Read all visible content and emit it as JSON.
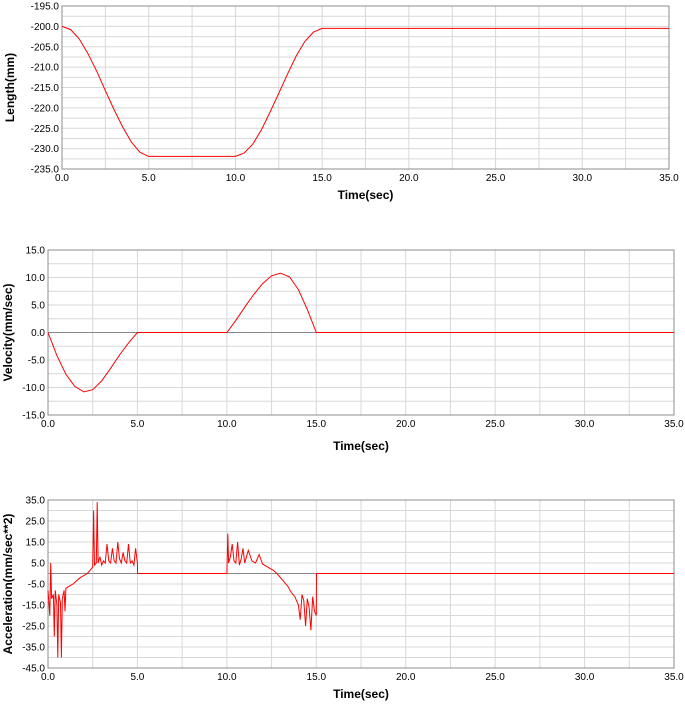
{
  "chart_data": [
    {
      "type": "line",
      "title": "",
      "xlabel": "Time(sec)",
      "ylabel": "Length(mm)",
      "xlim": [
        0,
        35
      ],
      "ylim": [
        -235,
        -195
      ],
      "x_ticks": [
        "0.0",
        "5.0",
        "10.0",
        "15.0",
        "20.0",
        "25.0",
        "30.0",
        "35.0"
      ],
      "y_ticks": [
        "-195.0",
        "-200.0",
        "-205.0",
        "-210.0",
        "-215.0",
        "-220.0",
        "-225.0",
        "-230.0",
        "-235.0"
      ],
      "grid": true,
      "series": [
        {
          "color": "#ff0000",
          "x": [
            0,
            0.5,
            1,
            1.5,
            2,
            2.5,
            3,
            3.5,
            4,
            4.5,
            5,
            10,
            10.5,
            11,
            11.5,
            12,
            12.5,
            13,
            13.5,
            14,
            14.5,
            15,
            35
          ],
          "y": [
            -200.0,
            -200.8,
            -203.1,
            -206.7,
            -211.0,
            -215.8,
            -220.4,
            -224.7,
            -228.4,
            -230.9,
            -231.9,
            -231.9,
            -231.1,
            -228.9,
            -225.4,
            -221.0,
            -216.4,
            -211.7,
            -207.3,
            -203.7,
            -201.4,
            -200.5,
            -200.5
          ]
        }
      ]
    },
    {
      "type": "line",
      "title": "",
      "xlabel": "Time(sec)",
      "ylabel": "Velocity(mm/sec)",
      "xlim": [
        0,
        35
      ],
      "ylim": [
        -15,
        15
      ],
      "x_ticks": [
        "0.0",
        "5.0",
        "10.0",
        "15.0",
        "20.0",
        "25.0",
        "30.0",
        "35.0"
      ],
      "y_ticks": [
        "15.0",
        "10.0",
        "5.0",
        "0.0",
        "-5.0",
        "-10.0",
        "-15.0"
      ],
      "grid": true,
      "series": [
        {
          "color": "#ff0000",
          "x": [
            0,
            0.5,
            1,
            1.5,
            2,
            2.5,
            3,
            3.5,
            4,
            4.5,
            5,
            10,
            10.5,
            11,
            11.5,
            12,
            12.5,
            13,
            13.5,
            14,
            14.5,
            15,
            35
          ],
          "y": [
            0,
            -4.2,
            -7.6,
            -9.8,
            -10.8,
            -10.4,
            -8.8,
            -6.5,
            -4.1,
            -1.9,
            0,
            0,
            2.2,
            4.6,
            6.9,
            8.9,
            10.3,
            10.8,
            10.1,
            7.8,
            4.2,
            0,
            0
          ]
        }
      ]
    },
    {
      "type": "line",
      "title": "",
      "xlabel": "Time(sec)",
      "ylabel": "Acceleration(mm/sec**2)",
      "xlim": [
        0,
        35
      ],
      "ylim": [
        -45,
        35
      ],
      "x_ticks": [
        "0.0",
        "5.0",
        "10.0",
        "15.0",
        "20.0",
        "25.0",
        "30.0",
        "35.0"
      ],
      "y_ticks": [
        "35.0",
        "25.0",
        "15.0",
        "5.0",
        "-5.0",
        "-15.0",
        "-25.0",
        "-35.0",
        "-45.0"
      ],
      "grid": true,
      "series": [
        {
          "color": "#ff0000",
          "x": [
            0,
            0.1,
            0.15,
            0.2,
            0.3,
            0.35,
            0.4,
            0.5,
            0.55,
            0.6,
            0.7,
            0.75,
            0.8,
            0.9,
            0.95,
            1.0,
            1.2,
            1.4,
            1.6,
            1.8,
            2.0,
            2.2,
            2.4,
            2.5,
            2.55,
            2.6,
            2.7,
            2.75,
            2.8,
            2.9,
            3.0,
            3.1,
            3.2,
            3.3,
            3.4,
            3.5,
            3.6,
            3.7,
            3.8,
            3.9,
            4.0,
            4.1,
            4.2,
            4.3,
            4.4,
            4.5,
            4.6,
            4.7,
            4.8,
            4.9,
            5.0,
            5.01,
            10.0,
            10.05,
            10.1,
            10.2,
            10.3,
            10.4,
            10.5,
            10.6,
            10.7,
            10.8,
            10.9,
            11.0,
            11.1,
            11.2,
            11.4,
            11.6,
            11.8,
            12.0,
            12.2,
            12.4,
            12.6,
            12.8,
            13.0,
            13.2,
            13.4,
            13.6,
            13.8,
            14.0,
            14.1,
            14.2,
            14.3,
            14.4,
            14.5,
            14.6,
            14.7,
            14.8,
            14.9,
            15.0,
            15.01,
            35
          ],
          "y": [
            -8,
            -20,
            5,
            -12,
            -10,
            -30,
            -8,
            -15,
            -40,
            -10,
            -14,
            -40,
            -12,
            -8,
            -18,
            -7,
            -6,
            -5,
            -3.5,
            -2,
            -1,
            0,
            2,
            3,
            30,
            4,
            5,
            34,
            5,
            8,
            4,
            6,
            5,
            14,
            6,
            5,
            12,
            6,
            5,
            15,
            7,
            5,
            10,
            6,
            5,
            14,
            5,
            6,
            4,
            12,
            5,
            0,
            0,
            19,
            5,
            8,
            14,
            6,
            5,
            15,
            4,
            7,
            12,
            5,
            8,
            11,
            6,
            5,
            9,
            4.5,
            3.5,
            2.5,
            1.5,
            0,
            -2,
            -4,
            -6,
            -9,
            -11,
            -15,
            -22,
            -10,
            -13,
            -25,
            -12,
            -16,
            -27,
            -11,
            -18,
            -20,
            0,
            0
          ]
        }
      ]
    }
  ]
}
